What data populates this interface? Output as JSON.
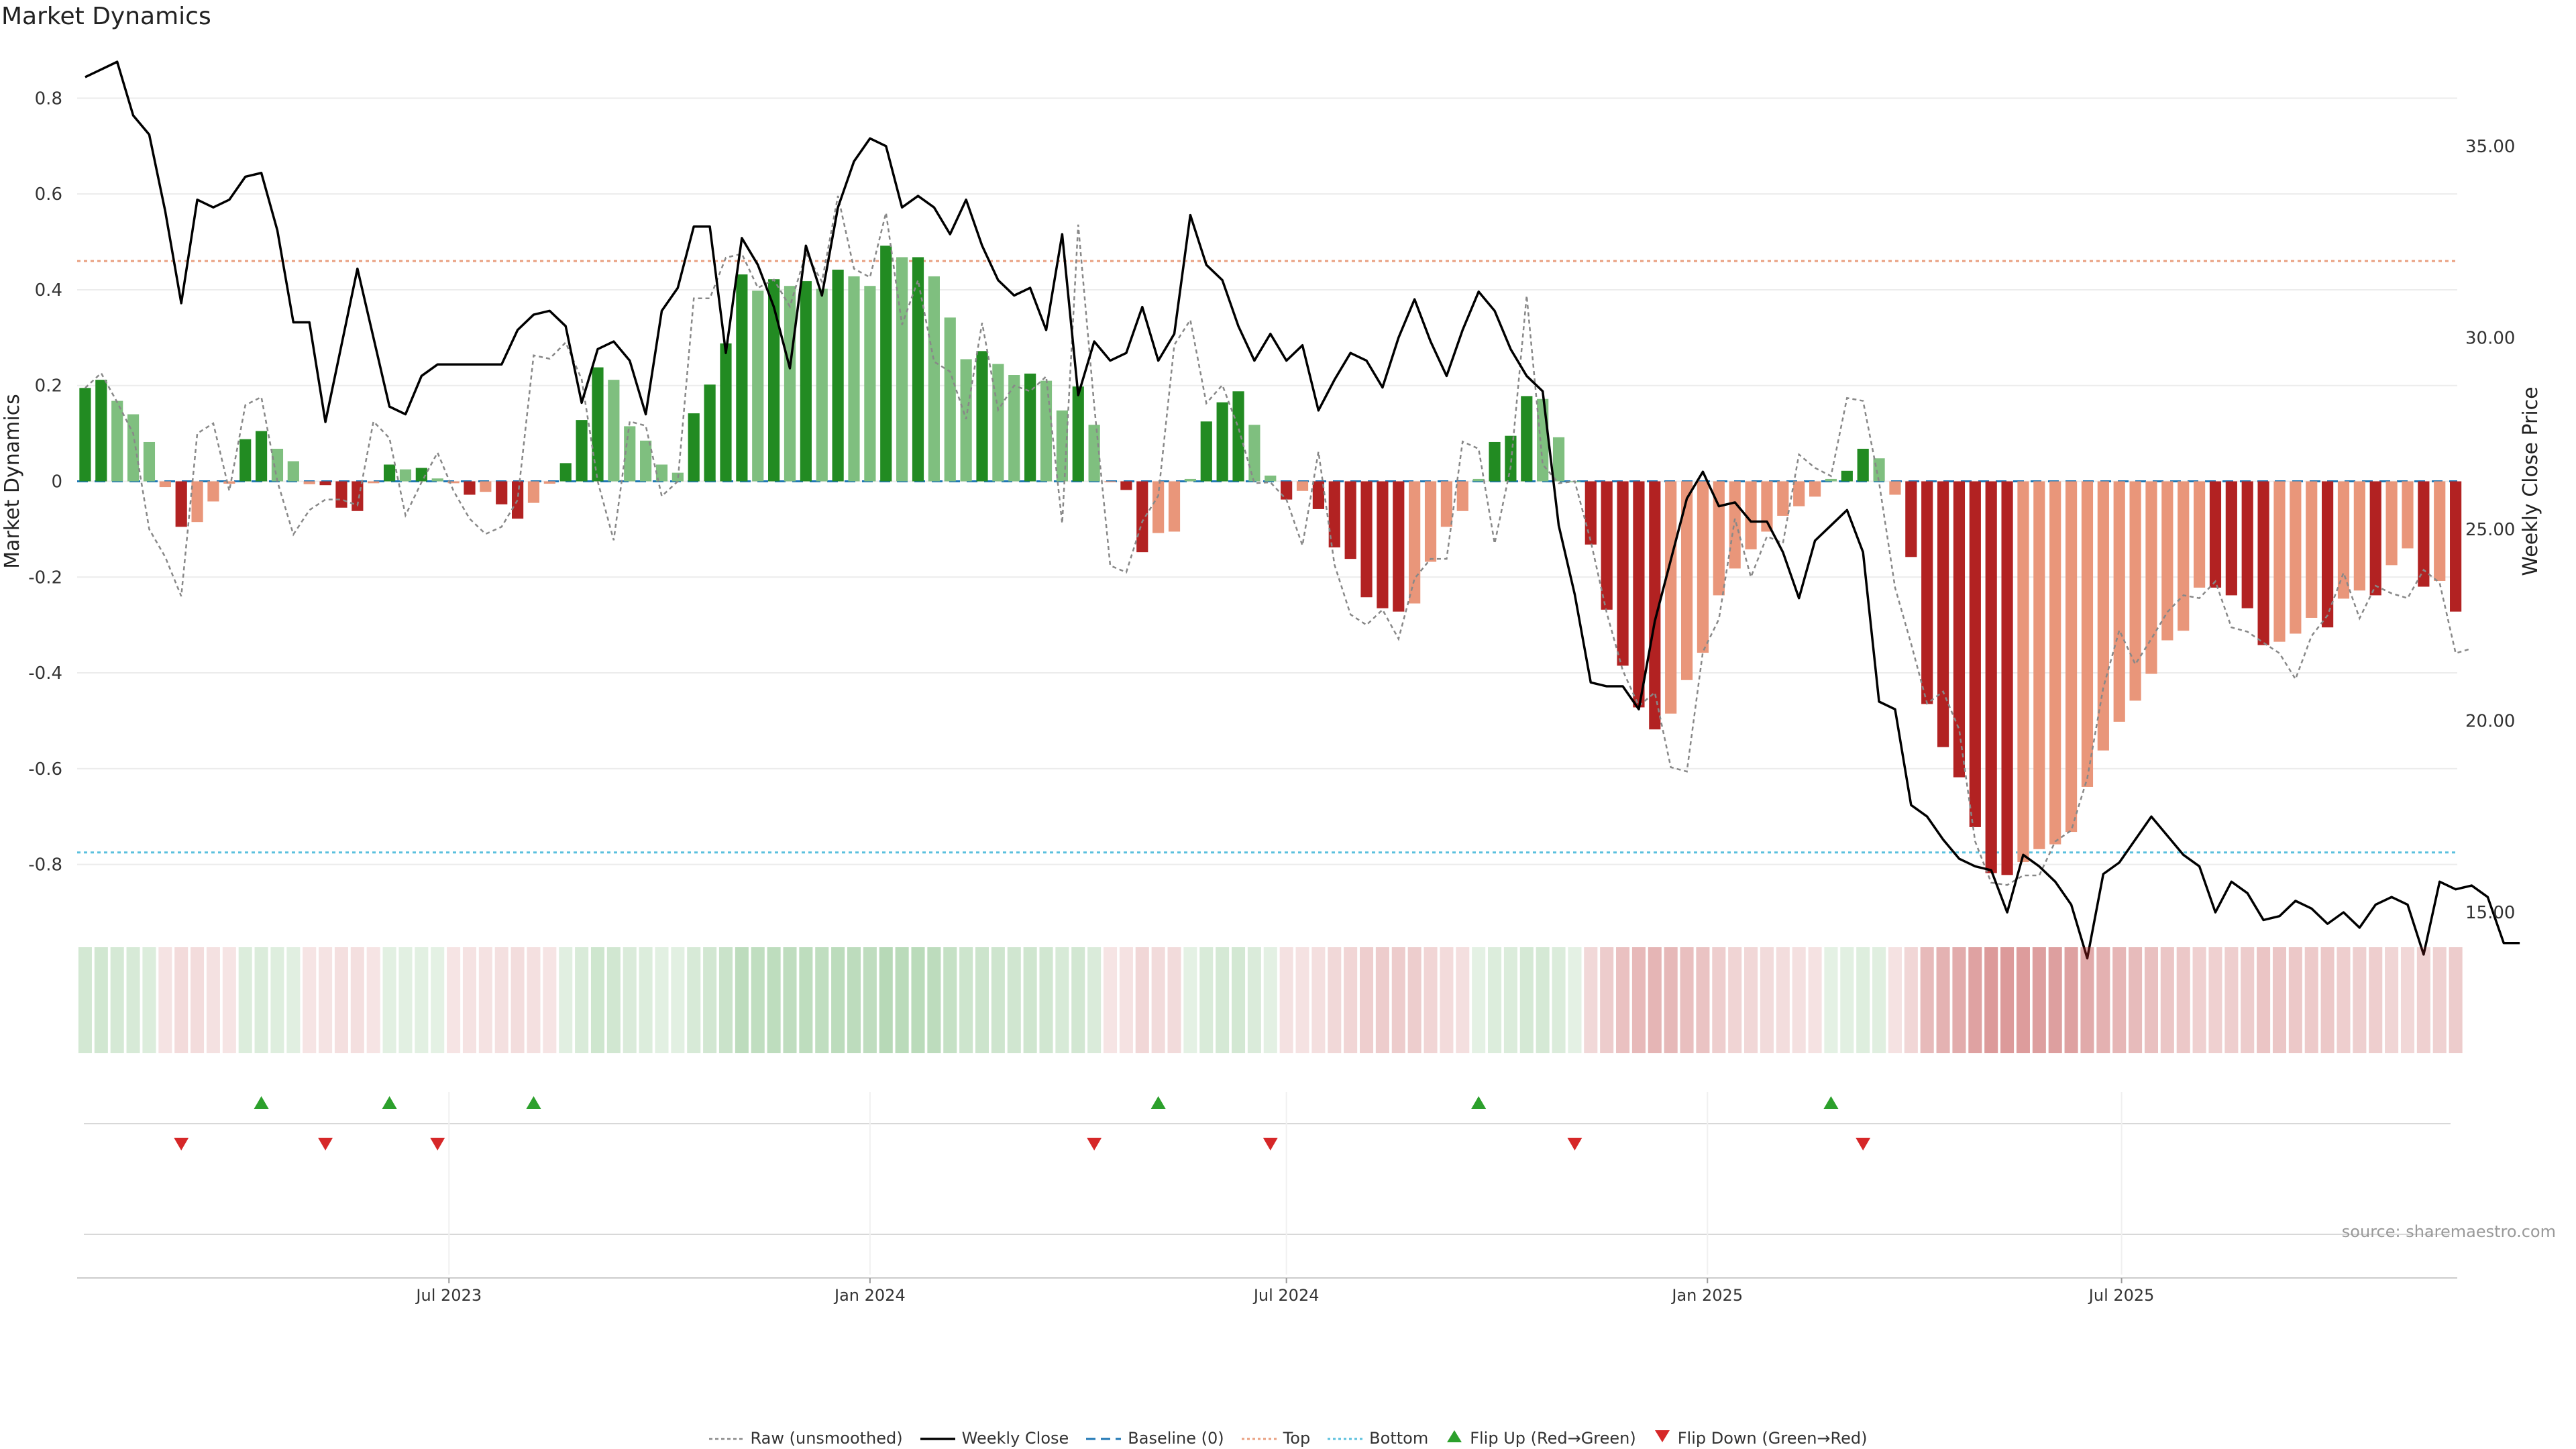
{
  "chart_title": "Market Dynamics",
  "source_note": "source: sharemaestro.com",
  "colors": {
    "strong_green": "#228B22",
    "light_green": "#7FBF7F",
    "strong_red": "#B22222",
    "light_red": "#E9967A",
    "price_line": "#000000",
    "raw_line": "#888888",
    "baseline": "#1f77b4",
    "top": "#E9A080",
    "bottom": "#5BC0DE",
    "flip_up": "#2ca02c",
    "flip_down": "#d62728"
  },
  "legend": [
    {
      "key": "raw",
      "label": "Raw (unsmoothed)"
    },
    {
      "key": "close",
      "label": "Weekly Close"
    },
    {
      "key": "baseline",
      "label": "Baseline (0)"
    },
    {
      "key": "top",
      "label": "Top"
    },
    {
      "key": "bottom",
      "label": "Bottom"
    },
    {
      "key": "flip_up",
      "label": "Flip Up (Red→Green)"
    },
    {
      "key": "flip_down",
      "label": "Flip Down (Green→Red)"
    }
  ],
  "chart_data": {
    "type": "bar",
    "title": "Market Dynamics",
    "ylabel": "Market Dynamics",
    "y2label": "Weekly Close Price",
    "ylim": [
      -0.9,
      0.9
    ],
    "y2lim": [
      15,
      37.5
    ],
    "y_ticks": [
      "0.8",
      "0.6",
      "0.4",
      "0.2",
      "0",
      "-0.2",
      "-0.4",
      "-0.6",
      "-0.8"
    ],
    "y2_ticks": [
      "35.00",
      "30.00",
      "25.00",
      "20.00",
      "15.00"
    ],
    "x_range": [
      "2023-01-23",
      "2025-11-24"
    ],
    "x_ticks": [
      {
        "date": "2023-07-01",
        "label": "Jul 2023"
      },
      {
        "date": "2024-01-01",
        "label": "Jan 2024"
      },
      {
        "date": "2024-07-01",
        "label": "Jul 2024"
      },
      {
        "date": "2025-01-01",
        "label": "Jan 2025"
      },
      {
        "date": "2025-07-01",
        "label": "Jul 2025"
      }
    ],
    "top_level": 0.46,
    "bottom_level": -0.775,
    "baseline": 0,
    "series": [
      {
        "name": "Market Dynamics",
        "values": [
          0.195,
          0.212,
          0.168,
          0.14,
          0.082,
          -0.012,
          -0.095,
          -0.085,
          -0.042,
          -0.005,
          0.088,
          0.105,
          0.068,
          0.042,
          -0.006,
          -0.008,
          -0.055,
          -0.062,
          -0.004,
          0.035,
          0.025,
          0.028,
          0.006,
          -0.004,
          -0.028,
          -0.022,
          -0.048,
          -0.078,
          -0.045,
          -0.005,
          0.038,
          0.128,
          0.238,
          0.212,
          0.115,
          0.085,
          0.035,
          0.018,
          0.142,
          0.202,
          0.288,
          0.432,
          0.398,
          0.422,
          0.408,
          0.418,
          0.402,
          0.442,
          0.428,
          0.408,
          0.492,
          0.468,
          0.468,
          0.428,
          0.342,
          0.255,
          0.272,
          0.245,
          0.222,
          0.225,
          0.21,
          0.148,
          0.198,
          0.118,
          -0.002,
          -0.018,
          -0.148,
          -0.108,
          -0.105,
          0.005,
          0.125,
          0.165,
          0.188,
          0.118,
          0.012,
          -0.038,
          -0.02,
          -0.058,
          -0.138,
          -0.162,
          -0.242,
          -0.265,
          -0.272,
          -0.255,
          -0.168,
          -0.095,
          -0.062,
          0.005,
          0.082,
          0.095,
          0.178,
          0.172,
          0.092,
          0.0,
          -0.132,
          -0.268,
          -0.385,
          -0.472,
          -0.518,
          -0.485,
          -0.415,
          -0.358,
          -0.238,
          -0.182,
          -0.142,
          -0.105,
          -0.072,
          -0.052,
          -0.032,
          0.005,
          0.022,
          0.068,
          0.048,
          -0.028,
          -0.158,
          -0.465,
          -0.555,
          -0.618,
          -0.722,
          -0.818,
          -0.822,
          -0.795,
          -0.768,
          -0.758,
          -0.732,
          -0.638,
          -0.562,
          -0.502,
          -0.458,
          -0.402,
          -0.332,
          -0.312,
          -0.222,
          -0.222,
          -0.238,
          -0.265,
          -0.342,
          -0.335,
          -0.318,
          -0.285,
          -0.305,
          -0.245,
          -0.228,
          -0.238,
          -0.175,
          -0.14,
          -0.22,
          -0.208,
          -0.272
        ]
      },
      {
        "name": "Raw (unsmoothed)",
        "values": [
          0.195,
          0.226,
          0.165,
          0.1,
          -0.1,
          -0.158,
          -0.24,
          0.1,
          0.121,
          -0.02,
          0.159,
          0.176,
          0.0,
          -0.111,
          -0.06,
          -0.038,
          -0.038,
          -0.05,
          0.125,
          0.09,
          -0.071,
          -0.002,
          0.06,
          -0.02,
          -0.078,
          -0.11,
          -0.095,
          -0.039,
          0.263,
          0.256,
          0.29,
          0.213,
          0.0,
          -0.123,
          0.125,
          0.116,
          -0.031,
          0.0,
          0.382,
          0.382,
          0.467,
          0.475,
          0.404,
          0.421,
          0.365,
          0.476,
          0.417,
          0.596,
          0.444,
          0.426,
          0.561,
          0.327,
          0.42,
          0.25,
          0.229,
          0.13,
          0.331,
          0.149,
          0.2,
          0.188,
          0.219,
          -0.088,
          0.536,
          0.158,
          -0.176,
          -0.19,
          -0.084,
          -0.03,
          0.285,
          0.337,
          0.163,
          0.201,
          0.112,
          -0.004,
          -0.002,
          -0.038,
          -0.134,
          0.062,
          -0.174,
          -0.278,
          -0.3,
          -0.268,
          -0.329,
          -0.203,
          -0.162,
          -0.162,
          0.083,
          0.068,
          -0.13,
          0.03,
          0.388,
          0.035,
          -0.004,
          0.0,
          -0.125,
          -0.275,
          -0.395,
          -0.469,
          -0.441,
          -0.597,
          -0.606,
          -0.356,
          -0.288,
          -0.078,
          -0.2,
          -0.115,
          -0.129,
          0.056,
          0.028,
          0.011,
          0.174,
          0.168,
          -0.002,
          -0.222,
          -0.339,
          -0.464,
          -0.439,
          -0.518,
          -0.752,
          -0.838,
          -0.843,
          -0.823,
          -0.823,
          -0.752,
          -0.729,
          -0.62,
          -0.431,
          -0.311,
          -0.382,
          -0.329,
          -0.273,
          -0.238,
          -0.244,
          -0.209,
          -0.305,
          -0.314,
          -0.337,
          -0.359,
          -0.413,
          -0.323,
          -0.28,
          -0.191,
          -0.286,
          -0.218,
          -0.234,
          -0.244,
          -0.185,
          -0.212,
          -0.359,
          -0.349
        ]
      },
      {
        "name": "Weekly Close",
        "values": [
          36.8,
          37.0,
          37.2,
          35.8,
          35.3,
          33.3,
          30.9,
          33.6,
          33.4,
          33.6,
          34.2,
          34.3,
          32.8,
          30.4,
          30.4,
          27.8,
          29.8,
          31.8,
          30.0,
          28.2,
          28.0,
          29.0,
          29.3,
          29.3,
          29.3,
          29.3,
          29.3,
          30.2,
          30.6,
          30.7,
          30.3,
          28.3,
          29.7,
          29.9,
          29.4,
          28.0,
          30.7,
          31.3,
          32.9,
          32.9,
          29.6,
          32.6,
          31.9,
          30.8,
          29.2,
          32.4,
          31.1,
          33.4,
          34.6,
          35.2,
          35.0,
          33.4,
          33.7,
          33.4,
          32.7,
          33.6,
          32.4,
          31.5,
          31.1,
          31.3,
          30.2,
          32.7,
          28.5,
          29.9,
          29.4,
          29.6,
          30.8,
          29.4,
          30.1,
          33.2,
          31.9,
          31.5,
          30.3,
          29.4,
          30.1,
          29.4,
          29.8,
          28.1,
          28.9,
          29.6,
          29.4,
          28.7,
          30.0,
          31.0,
          29.9,
          29.0,
          30.2,
          31.2,
          30.7,
          29.7,
          29.0,
          28.6,
          25.1,
          23.3,
          21.0,
          20.9,
          20.9,
          20.3,
          22.6,
          24.2,
          25.8,
          26.5,
          25.6,
          25.7,
          25.2,
          25.2,
          24.4,
          23.2,
          24.7,
          25.1,
          25.5,
          24.4,
          20.5,
          20.3,
          17.8,
          17.5,
          16.9,
          16.4,
          16.2,
          16.1,
          15.0,
          16.5,
          16.2,
          15.8,
          15.2,
          13.8,
          16.0,
          16.3,
          16.9,
          17.5,
          17.0,
          16.5,
          16.2,
          15.0,
          15.8,
          15.5,
          14.8,
          14.9,
          15.3,
          15.1,
          14.7,
          15.0,
          14.6,
          15.2,
          15.4,
          15.2,
          13.9,
          15.8,
          15.6,
          15.7,
          15.4,
          14.2,
          14.2
        ]
      }
    ],
    "flip_up_dates": [
      "2023-04-10",
      "2023-06-05",
      "2023-08-07",
      "2024-05-06",
      "2024-09-23",
      "2025-02-24"
    ],
    "flip_down_dates": [
      "2023-03-06",
      "2023-05-08",
      "2023-06-26",
      "2024-04-08",
      "2024-06-24",
      "2024-11-04",
      "2025-03-10"
    ]
  }
}
